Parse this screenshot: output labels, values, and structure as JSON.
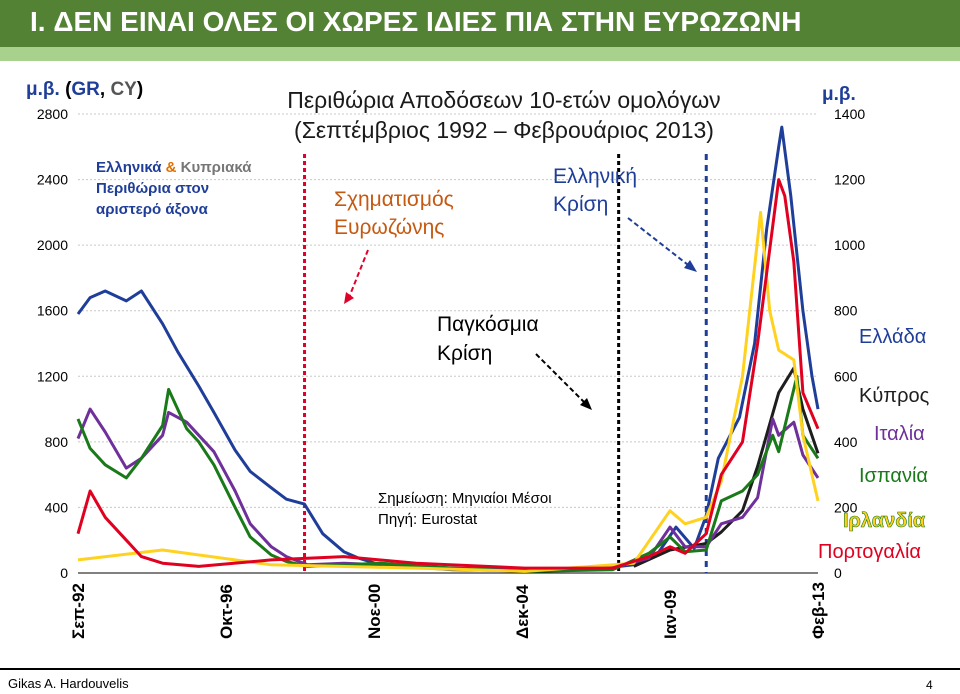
{
  "slide": {
    "title": "I.  ΔΕΝ ΕΙΝΑΙ ΟΛΕΣ ΟΙ ΧΩΡΕΣ ΙΔΙΕΣ ΠΙΑ ΣΤΗΝ ΕΥΡΩΖΩΝΗ",
    "author": "Gikas A. Hardouvelis",
    "page_number": "4",
    "header_color": "#548235",
    "stripe_color": "#a9d18e"
  },
  "chart_data": {
    "type": "line",
    "title": "Περιθώρια Αποδόσεων 10-ετών ομολόγων",
    "subtitle": "(Σεπτέμβριος 1992 – Φεβρουάριος 2013)",
    "left_axis_note": {
      "prefix": "μ.β.",
      "open": "(",
      "gr": "GR",
      "sep": ", ",
      "cy": "CY",
      "close": ")"
    },
    "right_axis_note": "μ.β.",
    "y_left": {
      "ticks": [
        "2800",
        "2400",
        "2000",
        "1600",
        "1200",
        "800",
        "400",
        "0"
      ],
      "ylim": [
        0,
        2800
      ]
    },
    "y_right": {
      "ticks": [
        "1400",
        "1200",
        "1000",
        "800",
        "600",
        "400",
        "200",
        "0"
      ],
      "ylim": [
        0,
        1400
      ]
    },
    "x_ticks": [
      "Σεπ-92",
      "Οκτ-96",
      "Νοε-00",
      "Δεκ-04",
      "Ιαν-09",
      "Φεβ-13"
    ],
    "x_range": [
      "1992-09",
      "2013-02"
    ],
    "vertical_markers": [
      {
        "date": "1998-12",
        "color": "#e0002a",
        "style": "dotted"
      },
      {
        "date": "2007-08",
        "color": "#000000",
        "style": "dotted"
      },
      {
        "date": "2010-01",
        "color": "#1f3e99",
        "style": "dashed"
      }
    ],
    "annotations": {
      "left_axis_box": {
        "line1_a": "Ελληνικά",
        "line1_b": "&",
        "line1_c": "Κυπριακά",
        "line2": "Περιθώρια στον",
        "line3": "αριστερό άξονα"
      },
      "euro_formation": [
        "Σχηματισμός",
        "Ευρωζώνης"
      ],
      "greek_crisis": [
        "Ελληνική",
        "Κρίση"
      ],
      "global_crisis": [
        "Παγκόσμια",
        "Κρίση"
      ],
      "note": "Σημείωση: Μηνιαίοι Μέσοι",
      "source": "Πηγή: Eurostat"
    },
    "series": [
      {
        "name": "Ελλάδα",
        "color": "#1f3e99",
        "axis": "left",
        "points": [
          [
            "1992-09",
            1580
          ],
          [
            "1993-01",
            1680
          ],
          [
            "1993-06",
            1720
          ],
          [
            "1994-01",
            1660
          ],
          [
            "1994-06",
            1720
          ],
          [
            "1995-01",
            1520
          ],
          [
            "1995-06",
            1350
          ],
          [
            "1996-01",
            1140
          ],
          [
            "1996-06",
            980
          ],
          [
            "1997-01",
            750
          ],
          [
            "1997-06",
            620
          ],
          [
            "1998-01",
            520
          ],
          [
            "1998-06",
            450
          ],
          [
            "1998-12",
            420
          ],
          [
            "1999-06",
            240
          ],
          [
            "2000-01",
            130
          ],
          [
            "2000-06",
            90
          ],
          [
            "2001-01",
            50
          ],
          [
            "2003-01",
            20
          ],
          [
            "2005-01",
            15
          ],
          [
            "2007-01",
            25
          ],
          [
            "2008-01",
            50
          ],
          [
            "2008-09",
            120
          ],
          [
            "2009-03",
            280
          ],
          [
            "2009-09",
            150
          ],
          [
            "2010-01",
            350
          ],
          [
            "2010-05",
            700
          ],
          [
            "2010-12",
            950
          ],
          [
            "2011-05",
            1400
          ],
          [
            "2011-09",
            2100
          ],
          [
            "2012-01",
            2600
          ],
          [
            "2012-02",
            2720
          ],
          [
            "2012-05",
            2300
          ],
          [
            "2012-09",
            1600
          ],
          [
            "2012-12",
            1200
          ],
          [
            "2013-02",
            1000
          ]
        ]
      },
      {
        "name": "Κύπρος",
        "color": "#1e1e1e",
        "axis": "left",
        "points": [
          [
            "2008-01",
            40
          ],
          [
            "2009-01",
            140
          ],
          [
            "2010-01",
            180
          ],
          [
            "2010-06",
            250
          ],
          [
            "2011-01",
            380
          ],
          [
            "2011-06",
            650
          ],
          [
            "2012-01",
            1100
          ],
          [
            "2012-06",
            1250
          ],
          [
            "2012-09",
            1000
          ],
          [
            "2013-02",
            730
          ]
        ]
      },
      {
        "name": "Ιταλία",
        "color": "#70309b",
        "axis": "right",
        "points": [
          [
            "1992-09",
            410
          ],
          [
            "1993-01",
            500
          ],
          [
            "1993-06",
            430
          ],
          [
            "1994-01",
            320
          ],
          [
            "1994-06",
            350
          ],
          [
            "1995-01",
            420
          ],
          [
            "1995-03",
            490
          ],
          [
            "1995-09",
            460
          ],
          [
            "1996-01",
            420
          ],
          [
            "1996-06",
            370
          ],
          [
            "1997-01",
            250
          ],
          [
            "1997-06",
            150
          ],
          [
            "1998-01",
            80
          ],
          [
            "1998-06",
            50
          ],
          [
            "1999-01",
            25
          ],
          [
            "2000-01",
            30
          ],
          [
            "2001-01",
            25
          ],
          [
            "2003-01",
            15
          ],
          [
            "2005-01",
            10
          ],
          [
            "2007-06",
            15
          ],
          [
            "2008-06",
            45
          ],
          [
            "2009-01",
            140
          ],
          [
            "2009-06",
            80
          ],
          [
            "2010-01",
            80
          ],
          [
            "2010-06",
            150
          ],
          [
            "2011-01",
            170
          ],
          [
            "2011-06",
            230
          ],
          [
            "2011-11",
            470
          ],
          [
            "2012-01",
            420
          ],
          [
            "2012-06",
            460
          ],
          [
            "2012-09",
            360
          ],
          [
            "2013-02",
            290
          ]
        ]
      },
      {
        "name": "Ισπανία",
        "color": "#1a7a1a",
        "axis": "right",
        "points": [
          [
            "1992-09",
            470
          ],
          [
            "1993-01",
            380
          ],
          [
            "1993-06",
            330
          ],
          [
            "1994-01",
            290
          ],
          [
            "1994-06",
            350
          ],
          [
            "1995-01",
            450
          ],
          [
            "1995-03",
            560
          ],
          [
            "1995-09",
            440
          ],
          [
            "1996-01",
            400
          ],
          [
            "1996-06",
            330
          ],
          [
            "1997-01",
            200
          ],
          [
            "1997-06",
            110
          ],
          [
            "1998-01",
            55
          ],
          [
            "1998-06",
            35
          ],
          [
            "1999-01",
            20
          ],
          [
            "2000-01",
            25
          ],
          [
            "2001-01",
            30
          ],
          [
            "2003-01",
            15
          ],
          [
            "2005-01",
            5
          ],
          [
            "2007-06",
            10
          ],
          [
            "2008-06",
            60
          ],
          [
            "2009-01",
            110
          ],
          [
            "2009-06",
            65
          ],
          [
            "2010-01",
            70
          ],
          [
            "2010-06",
            220
          ],
          [
            "2011-01",
            250
          ],
          [
            "2011-06",
            300
          ],
          [
            "2011-11",
            420
          ],
          [
            "2012-01",
            370
          ],
          [
            "2012-07",
            600
          ],
          [
            "2012-09",
            420
          ],
          [
            "2013-02",
            350
          ]
        ]
      },
      {
        "name": "Ιρλανδία",
        "color": "#ffd21f",
        "axis": "right",
        "points": [
          [
            "1992-09",
            40
          ],
          [
            "1995-01",
            70
          ],
          [
            "1998-01",
            25
          ],
          [
            "2002-01",
            15
          ],
          [
            "2005-01",
            5
          ],
          [
            "2008-01",
            30
          ],
          [
            "2009-01",
            190
          ],
          [
            "2009-06",
            150
          ],
          [
            "2010-01",
            170
          ],
          [
            "2010-06",
            280
          ],
          [
            "2011-01",
            600
          ],
          [
            "2011-07",
            1100
          ],
          [
            "2011-10",
            800
          ],
          [
            "2012-01",
            680
          ],
          [
            "2012-06",
            650
          ],
          [
            "2012-09",
            420
          ],
          [
            "2013-02",
            220
          ]
        ]
      },
      {
        "name": "Πορτογαλία",
        "color": "#e00020",
        "axis": "right",
        "points": [
          [
            "1992-09",
            120
          ],
          [
            "1993-01",
            250
          ],
          [
            "1993-06",
            170
          ],
          [
            "1994-01",
            100
          ],
          [
            "1994-06",
            50
          ],
          [
            "1995-01",
            30
          ],
          [
            "1996-01",
            20
          ],
          [
            "1998-01",
            40
          ],
          [
            "2000-01",
            50
          ],
          [
            "2002-01",
            30
          ],
          [
            "2005-01",
            15
          ],
          [
            "2007-06",
            15
          ],
          [
            "2008-06",
            50
          ],
          [
            "2009-01",
            80
          ],
          [
            "2009-06",
            60
          ],
          [
            "2010-01",
            120
          ],
          [
            "2010-06",
            300
          ],
          [
            "2011-01",
            400
          ],
          [
            "2011-06",
            700
          ],
          [
            "2012-01",
            1200
          ],
          [
            "2012-03",
            1150
          ],
          [
            "2012-06",
            950
          ],
          [
            "2012-09",
            550
          ],
          [
            "2013-02",
            440
          ]
        ]
      }
    ],
    "legend_placement": "right"
  }
}
